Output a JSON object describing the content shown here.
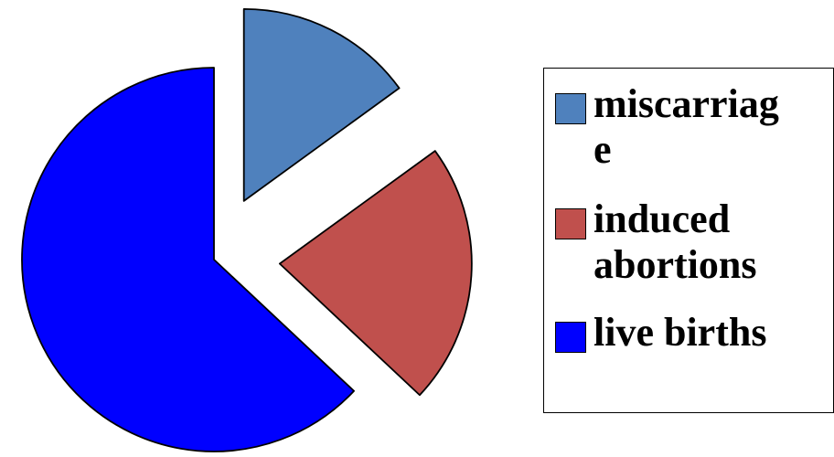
{
  "chart_data": {
    "type": "pie",
    "exploded": true,
    "legend_position": "right",
    "slices": [
      {
        "label": "miscarriag\ne",
        "value": 15,
        "color": "#4F81BD"
      },
      {
        "label": "induced\nabortions",
        "value": 22,
        "color": "#C0504D"
      },
      {
        "label": "live births",
        "value": 63,
        "color": "#0000FF"
      }
    ]
  }
}
